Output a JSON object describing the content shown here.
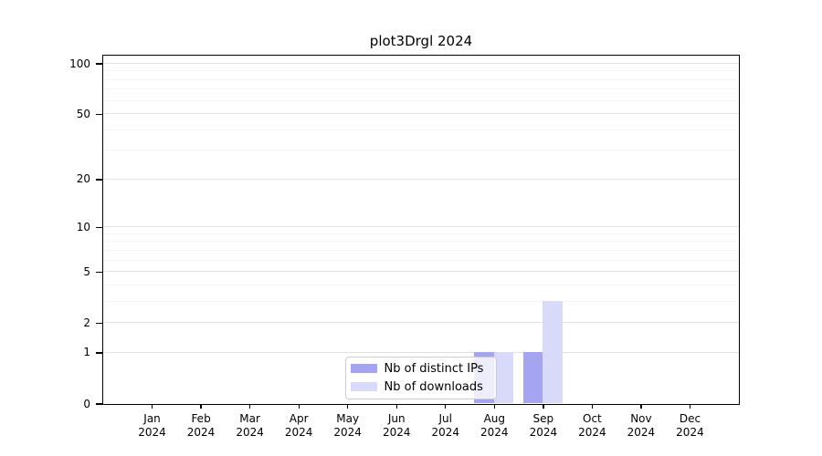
{
  "chart_data": {
    "type": "bar",
    "title": "plot3Drgl 2024",
    "categories": [
      "Jan",
      "Feb",
      "Mar",
      "Apr",
      "May",
      "Jun",
      "Jul",
      "Aug",
      "Sep",
      "Oct",
      "Nov",
      "Dec"
    ],
    "x_sublabel": "2024",
    "series": [
      {
        "name": "Nb of distinct IPs",
        "color": "#a4a4f1",
        "values": [
          0,
          0,
          0,
          0,
          0,
          0,
          0,
          1,
          1,
          0,
          0,
          0
        ]
      },
      {
        "name": "Nb of downloads",
        "color": "#d9d9f9",
        "values": [
          0,
          0,
          0,
          0,
          0,
          0,
          0,
          1,
          3,
          0,
          0,
          0
        ]
      }
    ],
    "y_scale": "log1p",
    "ylim": [
      0,
      100
    ],
    "yticks": [
      0,
      1,
      2,
      5,
      10,
      20,
      50,
      100
    ],
    "yticks_minor": [
      3,
      4,
      6,
      7,
      8,
      9,
      30,
      40,
      60,
      70,
      80,
      90
    ],
    "grid": true,
    "legend_position": "bottom-center"
  },
  "colors": {
    "major_grid": "#e2e2e2",
    "minor_grid": "#f3f3f3",
    "spine": "#000000",
    "text": "#000000",
    "legend_border": "#cccccc"
  }
}
